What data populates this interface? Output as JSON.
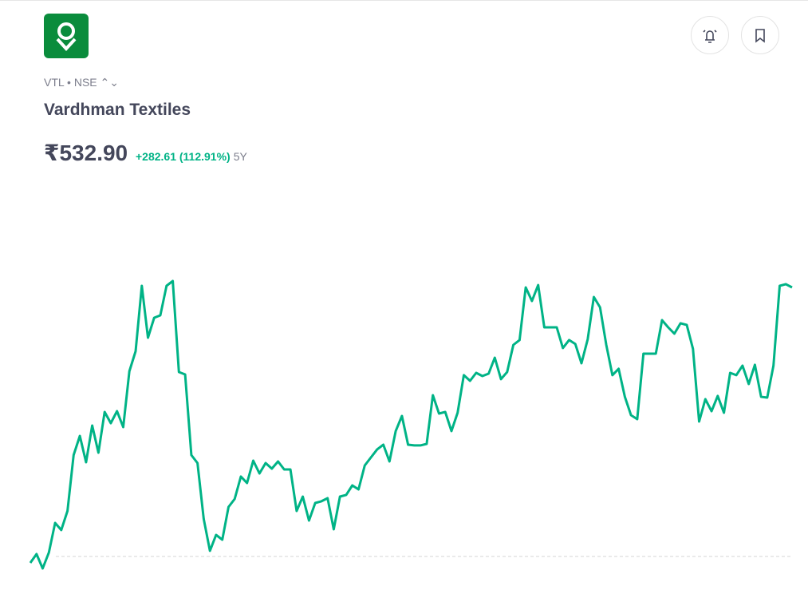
{
  "header": {
    "ticker": "VTL",
    "exchange": "NSE",
    "name": "Vardhman Textiles",
    "price": "₹532.90",
    "change": "+282.61 (112.91%)",
    "period": "5Y"
  },
  "chart_data": {
    "type": "line",
    "color": "#00b386",
    "baseline": 250.29,
    "values": [
      243.6,
      252.8,
      237.7,
      254.5,
      285.5,
      278.0,
      298.1,
      356.8,
      376.9,
      349.2,
      387.8,
      359.3,
      402.1,
      390.3,
      402.9,
      386.1,
      444.8,
      465.8,
      534.6,
      480.1,
      501.0,
      503.5,
      534.6,
      539.6,
      444.0,
      441.5,
      356.8,
      348.4,
      289.7,
      256.2,
      272.9,
      267.9,
      302.3,
      310.7,
      334.2,
      327.4,
      350.9,
      337.5,
      348.4,
      342.5,
      350.1,
      341.7,
      341.7,
      298.1,
      313.2,
      288.0,
      306.5,
      308.2,
      311.5,
      278.8,
      313.2,
      314.9,
      324.9,
      320.7,
      345.9,
      354.3,
      362.7,
      367.7,
      350.1,
      382.0,
      397.9,
      367.7,
      366.9,
      366.9,
      368.5,
      419.7,
      400.4,
      402.1,
      382.0,
      401.2,
      440.7,
      434.8,
      443.2,
      439.8,
      442.3,
      459.1,
      436.5,
      444.0,
      472.5,
      477.6,
      532.9,
      518.6,
      535.4,
      491.0,
      491.0,
      491.0,
      469.2,
      477.6,
      473.4,
      453.2,
      478.4,
      522.8,
      511.9,
      472.5,
      440.7,
      447.4,
      418.0,
      398.7,
      394.5,
      463.3,
      463.3,
      463.3,
      498.5,
      491.0,
      484.3,
      495.2,
      493.5,
      468.3,
      392.0,
      415.5,
      402.9,
      418.9,
      401.2,
      443.2,
      440.7,
      450.7,
      431.4,
      451.6,
      418.0,
      417.2,
      450.7,
      534.6,
      536.3,
      532.9
    ]
  }
}
